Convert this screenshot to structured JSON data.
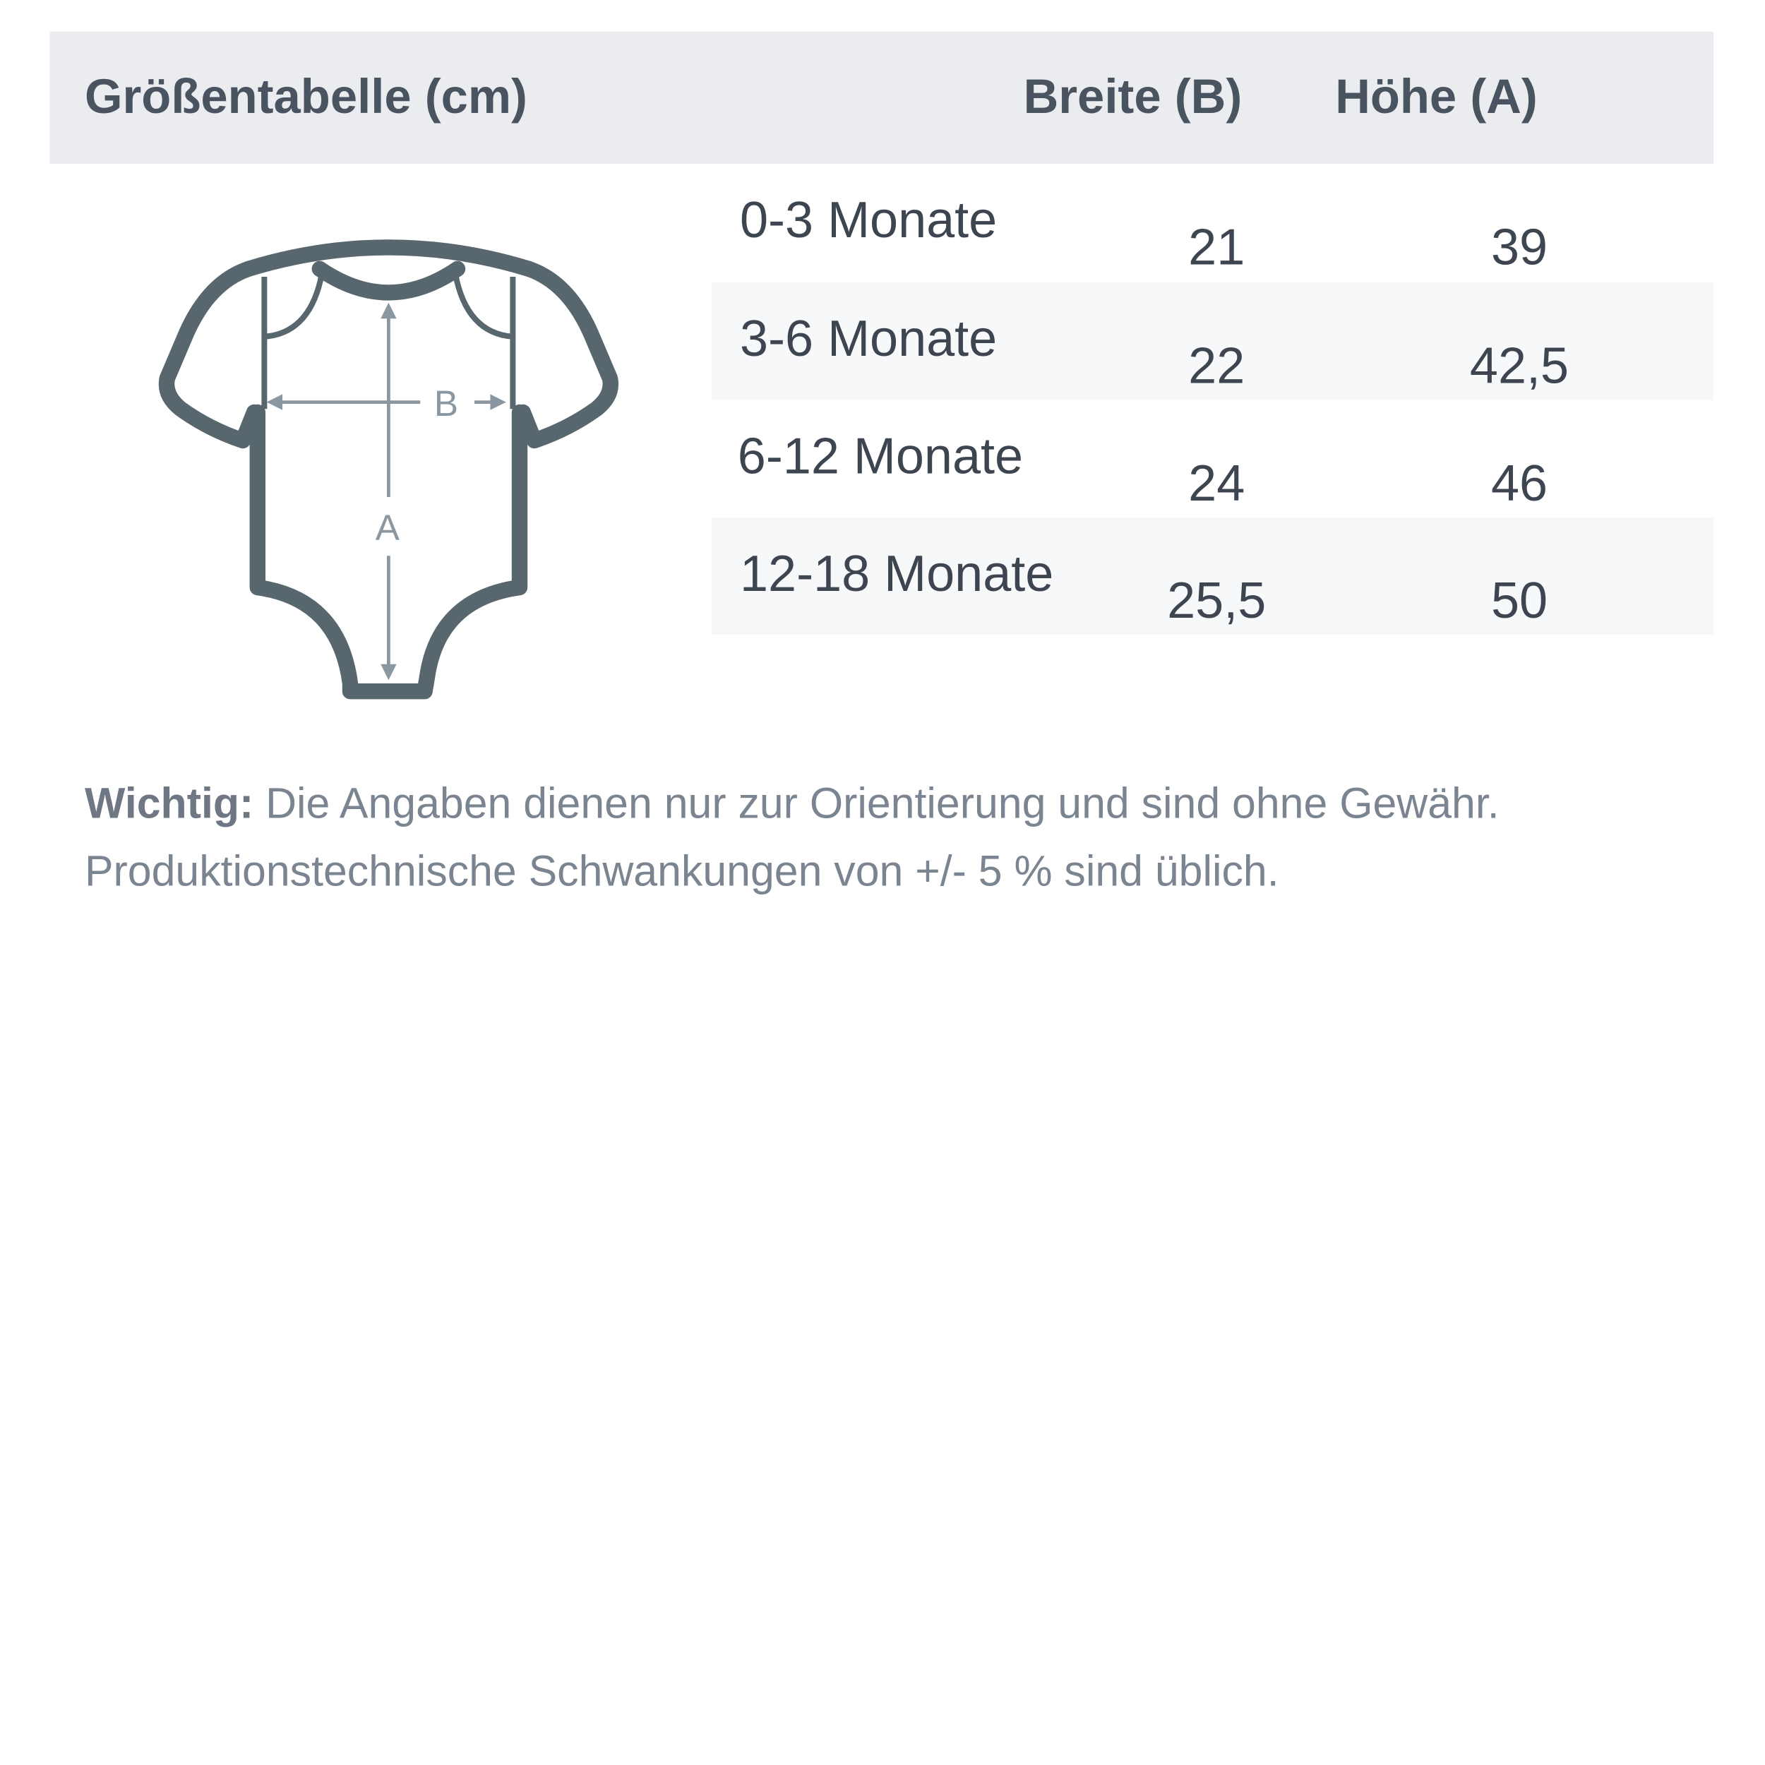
{
  "header": {
    "title": "Größentabelle (cm)",
    "col_width": "Breite (B)",
    "col_height": "Höhe (A)"
  },
  "rows": [
    {
      "size": "0-3 Monate",
      "width": "21",
      "height": "39"
    },
    {
      "size": "3-6 Monate",
      "width": "22",
      "height": "42,5"
    },
    {
      "size": "6-12 Monate",
      "width": "24",
      "height": "46"
    },
    {
      "size": "12-18 Monate",
      "width": "25,5",
      "height": "50"
    }
  ],
  "diagram": {
    "label_b": "B",
    "label_a": "A",
    "outline_color": "#58666e",
    "arrow_color": "#8a96a0"
  },
  "note": {
    "bold": "Wichtig:",
    "line1": "Die Angaben dienen nur zur Orientierung und sind ohne Gewähr.",
    "line2": "Produktionstechnische Schwankungen von +/- 5 % sind üblich."
  }
}
